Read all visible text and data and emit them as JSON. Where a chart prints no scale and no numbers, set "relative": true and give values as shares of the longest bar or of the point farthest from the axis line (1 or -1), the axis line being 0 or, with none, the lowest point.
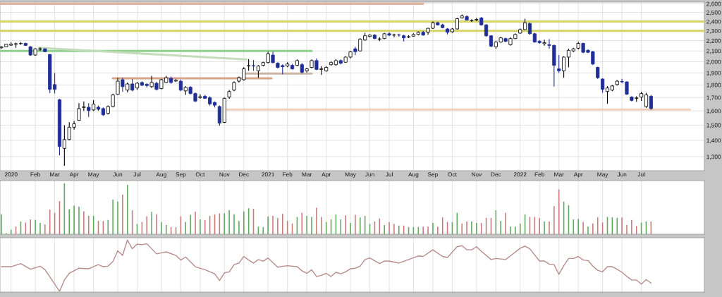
{
  "chart_data": [
    {
      "type": "candlestick",
      "log": "y",
      "grid": true,
      "color": "#000000",
      "x": [
        "2019-12-20",
        "2019-12-27",
        "2020-01-03",
        "2020-01-10",
        "2020-01-17",
        "2020-01-24",
        "2020-01-31",
        "2020-02-07",
        "2020-02-14",
        "2020-02-21",
        "2020-02-28",
        "2020-03-06",
        "2020-03-13",
        "2020-03-20",
        "2020-03-27",
        "2020-04-03",
        "2020-04-10",
        "2020-04-17",
        "2020-04-24",
        "2020-05-01",
        "2020-05-08",
        "2020-05-15",
        "2020-05-22",
        "2020-05-29",
        "2020-06-05",
        "2020-06-12",
        "2020-06-19",
        "2020-06-26",
        "2020-07-03",
        "2020-07-10",
        "2020-07-17",
        "2020-07-24",
        "2020-07-31",
        "2020-08-07",
        "2020-08-14",
        "2020-08-21",
        "2020-08-28",
        "2020-09-04",
        "2020-09-11",
        "2020-09-18",
        "2020-09-25",
        "2020-10-02",
        "2020-10-09",
        "2020-10-16",
        "2020-10-23",
        "2020-10-30",
        "2020-11-06",
        "2020-11-13",
        "2020-11-20",
        "2020-11-27",
        "2020-12-04",
        "2020-12-11",
        "2020-12-18",
        "2020-12-25",
        "2021-01-01",
        "2021-01-08",
        "2021-01-15",
        "2021-01-22",
        "2021-01-29",
        "2021-02-05",
        "2021-02-12",
        "2021-02-19",
        "2021-02-26",
        "2021-03-05",
        "2021-03-12",
        "2021-03-19",
        "2021-03-26",
        "2021-04-02",
        "2021-04-09",
        "2021-04-16",
        "2021-04-23",
        "2021-04-30",
        "2021-05-07",
        "2021-05-14",
        "2021-05-21",
        "2021-05-28",
        "2021-06-04",
        "2021-06-11",
        "2021-06-18",
        "2021-06-25",
        "2021-07-02",
        "2021-07-09",
        "2021-07-16",
        "2021-07-23",
        "2021-07-30",
        "2021-08-06",
        "2021-08-13",
        "2021-08-20",
        "2021-08-27",
        "2021-09-03",
        "2021-09-10",
        "2021-09-17",
        "2021-09-24",
        "2021-10-01",
        "2021-10-08",
        "2021-10-15",
        "2021-10-22",
        "2021-10-29",
        "2021-11-05",
        "2021-11-12",
        "2021-11-19",
        "2021-11-26",
        "2021-12-03",
        "2021-12-10",
        "2021-12-17",
        "2021-12-24",
        "2021-12-31",
        "2022-01-07",
        "2022-01-14",
        "2022-01-21",
        "2022-01-28",
        "2022-02-04",
        "2022-02-11",
        "2022-02-18",
        "2022-02-25",
        "2022-03-04",
        "2022-03-11",
        "2022-03-18",
        "2022-03-25",
        "2022-04-01",
        "2022-04-08",
        "2022-04-15",
        "2022-04-22",
        "2022-04-29",
        "2022-05-06",
        "2022-05-13",
        "2022-05-20",
        "2022-05-27",
        "2022-06-03",
        "2022-06-10",
        "2022-06-17",
        "2022-06-24",
        "2022-07-01",
        "2022-07-08",
        "2022-07-15"
      ],
      "ohlc": [
        [
          2130,
          2145,
          2120,
          2140
        ],
        [
          2140,
          2170,
          2135,
          2165
        ],
        [
          2155,
          2185,
          2150,
          2165
        ],
        [
          2165,
          2180,
          2130,
          2170
        ],
        [
          2170,
          2185,
          2160,
          2172
        ],
        [
          2173,
          2180,
          2150,
          2153
        ],
        [
          2140,
          2145,
          2055,
          2061
        ],
        [
          2061,
          2125,
          2055,
          2120
        ],
        [
          2115,
          2135,
          2100,
          2120
        ],
        [
          2120,
          2125,
          2090,
          2093
        ],
        [
          2067,
          2070,
          1735,
          1764
        ],
        [
          1803,
          1900,
          1731,
          1764
        ],
        [
          1683,
          1690,
          1308,
          1362
        ],
        [
          1350,
          1500,
          1248,
          1405
        ],
        [
          1405,
          1520,
          1400,
          1486
        ],
        [
          1486,
          1530,
          1470,
          1509
        ],
        [
          1533,
          1657,
          1530,
          1617
        ],
        [
          1625,
          1670,
          1600,
          1630
        ],
        [
          1627,
          1657,
          1557,
          1602
        ],
        [
          1607,
          1680,
          1600,
          1650
        ],
        [
          1627,
          1640,
          1600,
          1612
        ],
        [
          1617,
          1625,
          1565,
          1572
        ],
        [
          1582,
          1640,
          1575,
          1632
        ],
        [
          1632,
          1730,
          1625,
          1720
        ],
        [
          1725,
          1860,
          1720,
          1831
        ],
        [
          1843,
          1860,
          1747,
          1786
        ],
        [
          1758,
          1820,
          1740,
          1808
        ],
        [
          1808,
          1849,
          1750,
          1758
        ],
        [
          1775,
          1825,
          1760,
          1814
        ],
        [
          1820,
          1830,
          1790,
          1797
        ],
        [
          1805,
          1815,
          1780,
          1795
        ],
        [
          1786,
          1875,
          1775,
          1820
        ],
        [
          1814,
          1825,
          1755,
          1764
        ],
        [
          1770,
          1850,
          1765,
          1843
        ],
        [
          1820,
          1875,
          1815,
          1860
        ],
        [
          1854,
          1870,
          1810,
          1820
        ],
        [
          1832,
          1850,
          1825,
          1838
        ],
        [
          1831,
          1845,
          1750,
          1758
        ],
        [
          1752,
          1790,
          1720,
          1780
        ],
        [
          1781,
          1790,
          1725,
          1731
        ],
        [
          1731,
          1740,
          1665,
          1673
        ],
        [
          1700,
          1725,
          1690,
          1706
        ],
        [
          1710,
          1720,
          1690,
          1694
        ],
        [
          1699,
          1710,
          1640,
          1652
        ],
        [
          1663,
          1670,
          1625,
          1642
        ],
        [
          1632,
          1640,
          1496,
          1514
        ],
        [
          1519,
          1700,
          1515,
          1694
        ],
        [
          1704,
          1760,
          1690,
          1747
        ],
        [
          1758,
          1830,
          1750,
          1820
        ],
        [
          1831,
          1870,
          1820,
          1860
        ],
        [
          1843,
          1950,
          1835,
          1936
        ],
        [
          1961,
          2023,
          1919,
          1965
        ],
        [
          1965,
          2015,
          1919,
          1961
        ],
        [
          1919,
          1970,
          1860,
          1961
        ],
        [
          1967,
          2000,
          1960,
          1992
        ],
        [
          1992,
          2093,
          1985,
          2074
        ],
        [
          2061,
          2093,
          1985,
          1992
        ],
        [
          1986,
          1995,
          1940,
          1949
        ],
        [
          1965,
          1975,
          1889,
          1955
        ],
        [
          1961,
          1995,
          1950,
          1979
        ],
        [
          1967,
          1980,
          1930,
          1936
        ],
        [
          1967,
          2020,
          1960,
          2010
        ],
        [
          1973,
          1990,
          1895,
          1907
        ],
        [
          1919,
          1945,
          1905,
          1936
        ],
        [
          1949,
          2020,
          1940,
          2010
        ],
        [
          2010,
          2030,
          1925,
          1931
        ],
        [
          1931,
          1960,
          1883,
          1936
        ],
        [
          1919,
          1960,
          1910,
          1949
        ],
        [
          1973,
          2005,
          1965,
          1992
        ],
        [
          1973,
          2023,
          1965,
          2010
        ],
        [
          2010,
          2020,
          1975,
          1986
        ],
        [
          1995,
          2050,
          1990,
          2042
        ],
        [
          2042,
          2100,
          2030,
          2093
        ],
        [
          2120,
          2140,
          2060,
          2093
        ],
        [
          2100,
          2225,
          2095,
          2214
        ],
        [
          2207,
          2280,
          2200,
          2249
        ],
        [
          2242,
          2265,
          2235,
          2256
        ],
        [
          2256,
          2265,
          2215,
          2221
        ],
        [
          2214,
          2235,
          2195,
          2218
        ],
        [
          2221,
          2280,
          2215,
          2270
        ],
        [
          2270,
          2285,
          2245,
          2256
        ],
        [
          2256,
          2270,
          2235,
          2258
        ],
        [
          2258,
          2270,
          2240,
          2256
        ],
        [
          2249,
          2260,
          2193,
          2228
        ],
        [
          2235,
          2255,
          2225,
          2240
        ],
        [
          2245,
          2275,
          2240,
          2263
        ],
        [
          2263,
          2295,
          2255,
          2285
        ],
        [
          2285,
          2300,
          2250,
          2256
        ],
        [
          2285,
          2330,
          2260,
          2327
        ],
        [
          2327,
          2400,
          2320,
          2386
        ],
        [
          2386,
          2395,
          2355,
          2363
        ],
        [
          2363,
          2375,
          2325,
          2334
        ],
        [
          2320,
          2330,
          2263,
          2285
        ],
        [
          2290,
          2330,
          2280,
          2320
        ],
        [
          2320,
          2440,
          2315,
          2430
        ],
        [
          2440,
          2477,
          2430,
          2461
        ],
        [
          2454,
          2470,
          2410,
          2416
        ],
        [
          2408,
          2425,
          2395,
          2410
        ],
        [
          2415,
          2440,
          2405,
          2423
        ],
        [
          2438,
          2450,
          2355,
          2363
        ],
        [
          2363,
          2370,
          2240,
          2249
        ],
        [
          2249,
          2255,
          2135,
          2146
        ],
        [
          2140,
          2200,
          2120,
          2186
        ],
        [
          2186,
          2240,
          2180,
          2228
        ],
        [
          2221,
          2230,
          2185,
          2193
        ],
        [
          2160,
          2235,
          2150,
          2221
        ],
        [
          2221,
          2275,
          2215,
          2263
        ],
        [
          2277,
          2325,
          2270,
          2313
        ],
        [
          2313,
          2430,
          2305,
          2386
        ],
        [
          2378,
          2390,
          2260,
          2270
        ],
        [
          2270,
          2280,
          2180,
          2186
        ],
        [
          2193,
          2205,
          2170,
          2180
        ],
        [
          2170,
          2210,
          2150,
          2180
        ],
        [
          2160,
          2215,
          2120,
          2153
        ],
        [
          2153,
          2160,
          1786,
          1967
        ],
        [
          1936,
          2061,
          1900,
          1919
        ],
        [
          1919,
          2050,
          1860,
          2042
        ],
        [
          2042,
          2120,
          1950,
          2106
        ],
        [
          2100,
          2130,
          2090,
          2120
        ],
        [
          2126,
          2190,
          2115,
          2173
        ],
        [
          2173,
          2180,
          2080,
          2087
        ],
        [
          2106,
          2115,
          2080,
          2087
        ],
        [
          2093,
          2100,
          1970,
          1979
        ],
        [
          1949,
          1955,
          1850,
          1860
        ],
        [
          1849,
          1855,
          1737,
          1764
        ],
        [
          1747,
          1790,
          1652,
          1775
        ],
        [
          1758,
          1800,
          1750,
          1792
        ],
        [
          1803,
          1840,
          1795,
          1831
        ],
        [
          1828,
          1850,
          1815,
          1825
        ],
        [
          1825,
          1830,
          1720,
          1726
        ],
        [
          1704,
          1710,
          1670,
          1678
        ],
        [
          1694,
          1710,
          1668,
          1697
        ],
        [
          1704,
          1745,
          1675,
          1731
        ],
        [
          1632,
          1737,
          1622,
          1720
        ],
        [
          1710,
          1720,
          1607,
          1617
        ]
      ],
      "colors": [
        "#ffffff",
        "#ffffff",
        "#ffffff",
        "#ffffff",
        "#ffffff",
        "#1f2e96",
        "#1f2e96",
        "#ffffff",
        "#ffffff",
        "#1f2e96",
        "#1f2e96",
        "#1f2e96",
        "#1f2e96",
        "#ffffff",
        "#ffffff",
        "#ffffff",
        "#ffffff",
        "#ffffff",
        "#1f2e96",
        "#ffffff",
        "#1f2e96",
        "#1f2e96",
        "#ffffff",
        "#ffffff",
        "#ffffff",
        "#1f2e96",
        "#ffffff",
        "#1f2e96",
        "#ffffff",
        "#1f2e96",
        "#1f2e96",
        "#ffffff",
        "#1f2e96",
        "#ffffff",
        "#ffffff",
        "#1f2e96",
        "#ffffff",
        "#1f2e96",
        "#ffffff",
        "#1f2e96",
        "#1f2e96",
        "#ffffff",
        "#1f2e96",
        "#1f2e96",
        "#1f2e96",
        "#1f2e96",
        "#ffffff",
        "#ffffff",
        "#ffffff",
        "#ffffff",
        "#ffffff",
        "#ffffff",
        "#1f2e96",
        "#ffffff",
        "#ffffff",
        "#ffffff",
        "#1f2e96",
        "#1f2e96",
        "#1f2e96",
        "#ffffff",
        "#1f2e96",
        "#ffffff",
        "#1f2e96",
        "#ffffff",
        "#ffffff",
        "#1f2e96",
        "#ffffff",
        "#ffffff",
        "#ffffff",
        "#ffffff",
        "#1f2e96",
        "#ffffff",
        "#ffffff",
        "#1f2e96",
        "#ffffff",
        "#ffffff",
        "#ffffff",
        "#1f2e96",
        "#ffffff",
        "#ffffff",
        "#1f2e96",
        "#ffffff",
        "#1f2e96",
        "#1f2e96",
        "#ffffff",
        "#ffffff",
        "#ffffff",
        "#1f2e96",
        "#ffffff",
        "#ffffff",
        "#1f2e96",
        "#1f2e96",
        "#1f2e96",
        "#ffffff",
        "#ffffff",
        "#ffffff",
        "#1f2e96",
        "#ffffff",
        "#ffffff",
        "#1f2e96",
        "#1f2e96",
        "#1f2e96",
        "#ffffff",
        "#ffffff",
        "#1f2e96",
        "#ffffff",
        "#ffffff",
        "#ffffff",
        "#ffffff",
        "#1f2e96",
        "#1f2e96",
        "#1f2e96",
        "#ffffff",
        "#1f2e96",
        "#1f2e96",
        "#1f2e96",
        "#ffffff",
        "#ffffff",
        "#ffffff",
        "#ffffff",
        "#1f2e96",
        "#1f2e96",
        "#1f2e96",
        "#1f2e96",
        "#1f2e96",
        "#ffffff",
        "#ffffff",
        "#ffffff",
        "#1f2e96",
        "#1f2e96",
        "#1f2e96",
        "#ffffff",
        "#ffffff",
        "#ffffff",
        "#1f2e96"
      ],
      "series": [
        {
          "type": "line",
          "color": "#e2b3a0",
          "x": [
            "2019-12-18",
            "2021-08-20"
          ],
          "values": [
            2600,
            2600
          ]
        },
        {
          "type": "line",
          "color": "#d4d46a",
          "x": [
            "2019-12-18",
            "2022-09-30"
          ],
          "values": [
            2400,
            2400
          ]
        },
        {
          "type": "line",
          "color": "#d4d46a",
          "x": [
            "2019-12-18",
            "2022-09-30"
          ],
          "values": [
            2300,
            2300
          ]
        },
        {
          "type": "line",
          "color": "#8fd08f",
          "x": [
            "2019-12-18",
            "2021-03-12"
          ],
          "values": [
            2100,
            2100
          ]
        },
        {
          "type": "line",
          "color": "#c4dcbc",
          "x": [
            "2020-02-12",
            "2020-12-08"
          ],
          "values": [
            2130,
            2020
          ]
        },
        {
          "type": "line",
          "color": "#d9a58a",
          "x": [
            "2020-05-29",
            "2021-01-13"
          ],
          "values": [
            1855,
            1855
          ]
        },
        {
          "type": "line",
          "color": "#cbb5a5",
          "x": [
            "2020-12-05",
            "2021-03-12"
          ],
          "values": [
            1895,
            1895
          ]
        },
        {
          "type": "line",
          "color": "#f0d0bc",
          "x": [
            "2020-11-06",
            "2022-09-09"
          ],
          "values": [
            1610,
            1610
          ]
        }
      ],
      "xlim": [
        "2019-12-18",
        "2022-09-30"
      ],
      "ylim": [
        1220,
        2620
      ],
      "yticks": [
        {
          "value": 1300,
          "label": "1,300"
        },
        {
          "value": 1400,
          "label": "1,400"
        },
        {
          "value": 1500,
          "label": "1,500"
        },
        {
          "value": 1600,
          "label": "1,600"
        },
        {
          "value": 1700,
          "label": "1,700"
        },
        {
          "value": 1800,
          "label": "1,800"
        },
        {
          "value": 1900,
          "label": "1,900"
        },
        {
          "value": 2000,
          "label": "2,000"
        },
        {
          "value": 2100,
          "label": "2,100"
        },
        {
          "value": 2200,
          "label": "2,200"
        },
        {
          "value": 2300,
          "label": "2,300"
        },
        {
          "value": 2400,
          "label": "2,400"
        },
        {
          "value": 2500,
          "label": "2,500"
        },
        {
          "value": 2600,
          "label": "2,600"
        }
      ],
      "xticks": [
        {
          "value": "2020-01-03",
          "label": "2020"
        },
        {
          "value": "2020-02-07",
          "label": "Feb"
        },
        {
          "value": "2020-03-06",
          "label": "Mar"
        },
        {
          "value": "2020-04-03",
          "label": "Apr"
        },
        {
          "value": "2020-05-01",
          "label": "May"
        },
        {
          "value": "2020-06-05",
          "label": "Jun"
        },
        {
          "value": "2020-07-03",
          "label": "Jul"
        },
        {
          "value": "2020-08-07",
          "label": "Aug"
        },
        {
          "value": "2020-09-04",
          "label": "Sep"
        },
        {
          "value": "2020-10-02",
          "label": "Oct"
        },
        {
          "value": "2020-11-06",
          "label": "Nov"
        },
        {
          "value": "2020-12-04",
          "label": "Dec"
        },
        {
          "value": "2021-01-08",
          "label": "2021"
        },
        {
          "value": "2021-02-05",
          "label": "Feb"
        },
        {
          "value": "2021-03-05",
          "label": "Mar"
        },
        {
          "value": "2021-04-02",
          "label": "Apr"
        },
        {
          "value": "2021-05-07",
          "label": "May"
        },
        {
          "value": "2021-06-04",
          "label": "Jun"
        },
        {
          "value": "2021-07-02",
          "label": "Jul"
        },
        {
          "value": "2021-08-06",
          "label": "Aug"
        },
        {
          "value": "2021-09-03",
          "label": "Sep"
        },
        {
          "value": "2021-10-01",
          "label": "Oct"
        },
        {
          "value": "2021-11-05",
          "label": "Nov"
        },
        {
          "value": "2021-12-03",
          "label": "Dec"
        },
        {
          "value": "2022-01-07",
          "label": "2022"
        },
        {
          "value": "2022-02-04",
          "label": "Feb"
        },
        {
          "value": "2022-03-04",
          "label": "Mar"
        },
        {
          "value": "2022-04-01",
          "label": "Apr"
        },
        {
          "value": "2022-05-06",
          "label": "May"
        },
        {
          "value": "2022-06-03",
          "label": "Jun"
        },
        {
          "value": "2022-07-01",
          "label": "Jul"
        }
      ]
    },
    {
      "type": "bar",
      "relative": true,
      "grid": "x",
      "tick_labels": false,
      "x": [
        "2019-12-20",
        "2019-12-27",
        "2020-01-03",
        "2020-01-10",
        "2020-01-17",
        "2020-01-24",
        "2020-01-31",
        "2020-02-07",
        "2020-02-14",
        "2020-02-21",
        "2020-02-28",
        "2020-03-06",
        "2020-03-13",
        "2020-03-20",
        "2020-03-27",
        "2020-04-03",
        "2020-04-10",
        "2020-04-17",
        "2020-04-24",
        "2020-05-01",
        "2020-05-08",
        "2020-05-15",
        "2020-05-22",
        "2020-05-29",
        "2020-06-05",
        "2020-06-12",
        "2020-06-19",
        "2020-06-26",
        "2020-07-03",
        "2020-07-10",
        "2020-07-17",
        "2020-07-24",
        "2020-07-31",
        "2020-08-07",
        "2020-08-14",
        "2020-08-21",
        "2020-08-28",
        "2020-09-04",
        "2020-09-11",
        "2020-09-18",
        "2020-09-25",
        "2020-10-02",
        "2020-10-09",
        "2020-10-16",
        "2020-10-23",
        "2020-10-30",
        "2020-11-06",
        "2020-11-13",
        "2020-11-20",
        "2020-11-27",
        "2020-12-04",
        "2020-12-11",
        "2020-12-18",
        "2020-12-25",
        "2021-01-01",
        "2021-01-08",
        "2021-01-15",
        "2021-01-22",
        "2021-01-29",
        "2021-02-05",
        "2021-02-12",
        "2021-02-19",
        "2021-02-26",
        "2021-03-05",
        "2021-03-12",
        "2021-03-19",
        "2021-03-26",
        "2021-04-02",
        "2021-04-09",
        "2021-04-16",
        "2021-04-23",
        "2021-04-30",
        "2021-05-07",
        "2021-05-14",
        "2021-05-21",
        "2021-05-28",
        "2021-06-04",
        "2021-06-11",
        "2021-06-18",
        "2021-06-25",
        "2021-07-02",
        "2021-07-09",
        "2021-07-16",
        "2021-07-23",
        "2021-07-30",
        "2021-08-06",
        "2021-08-13",
        "2021-08-20",
        "2021-08-27",
        "2021-09-03",
        "2021-09-10",
        "2021-09-17",
        "2021-09-24",
        "2021-10-01",
        "2021-10-08",
        "2021-10-15",
        "2021-10-22",
        "2021-10-29",
        "2021-11-05",
        "2021-11-12",
        "2021-11-19",
        "2021-11-26",
        "2021-12-03",
        "2021-12-10",
        "2021-12-17",
        "2021-12-24",
        "2021-12-31",
        "2022-01-07",
        "2022-01-14",
        "2022-01-21",
        "2022-01-28",
        "2022-02-04",
        "2022-02-11",
        "2022-02-18",
        "2022-02-25",
        "2022-03-04",
        "2022-03-11",
        "2022-03-18",
        "2022-03-25",
        "2022-04-01",
        "2022-04-08",
        "2022-04-15",
        "2022-04-22",
        "2022-04-29",
        "2022-05-06",
        "2022-05-13",
        "2022-05-20",
        "2022-05-27",
        "2022-06-03",
        "2022-06-10",
        "2022-06-17",
        "2022-06-24",
        "2022-07-01",
        "2022-07-08",
        "2022-07-15"
      ],
      "values": [
        0.39,
        0.02,
        0.09,
        0.15,
        0.25,
        0.23,
        0.29,
        0.28,
        0.22,
        0.19,
        0.48,
        0.42,
        0.65,
        1,
        0.49,
        0.56,
        0.54,
        0.45,
        0.36,
        0.36,
        0.26,
        0.26,
        0.28,
        0.68,
        0.64,
        0.78,
        0.97,
        0.47,
        0.2,
        0.24,
        0.35,
        0.44,
        0.39,
        0.24,
        0.18,
        0.14,
        0.14,
        0.35,
        0.24,
        0.38,
        0.44,
        0.29,
        0.28,
        0.36,
        0.39,
        0.41,
        0.41,
        0.47,
        0.39,
        0.26,
        0.45,
        0.51,
        0.5,
        0.15,
        0.14,
        0.35,
        0.36,
        0.32,
        0.4,
        0.26,
        0.21,
        0.34,
        0.42,
        0.36,
        0.34,
        0.52,
        0.34,
        0.24,
        0.29,
        0.39,
        0.29,
        0.37,
        0.22,
        0.38,
        0.33,
        0.36,
        0.2,
        0.25,
        0.31,
        0.18,
        0.24,
        0.2,
        0.17,
        0.17,
        0.14,
        0.14,
        0.14,
        0.15,
        0.15,
        0.22,
        0.15,
        0.33,
        0.24,
        0.24,
        0.42,
        0.21,
        0.25,
        0.25,
        0.22,
        0.22,
        0.32,
        0.32,
        0.47,
        0.26,
        0.42,
        0.15,
        0.15,
        0.21,
        0.39,
        0.34,
        0.34,
        0.32,
        0.25,
        0.25,
        0.55,
        0.88,
        0.64,
        0.57,
        0.29,
        0.3,
        0.24,
        0.15,
        0.21,
        0.33,
        0.23,
        0.34,
        0.33,
        0.32,
        0.33,
        0.18,
        0.28,
        0.16,
        0.23,
        0.25,
        0.25
      ],
      "colors": [
        "#5fa85f",
        "#5fa85f",
        "#5fa85f",
        "#c97a7a",
        "#5fa85f",
        "#c97a7a",
        "#c97a7a",
        "#5fa85f",
        "#5fa85f",
        "#c97a7a",
        "#c97a7a",
        "#c97a7a",
        "#c97a7a",
        "#5fa85f",
        "#5fa85f",
        "#5fa85f",
        "#5fa85f",
        "#c97a7a",
        "#c97a7a",
        "#5fa85f",
        "#c97a7a",
        "#c97a7a",
        "#5fa85f",
        "#5fa85f",
        "#5fa85f",
        "#c97a7a",
        "#5fa85f",
        "#c97a7a",
        "#5fa85f",
        "#c97a7a",
        "#c97a7a",
        "#5fa85f",
        "#c97a7a",
        "#5fa85f",
        "#5fa85f",
        "#c97a7a",
        "#c97a7a",
        "#c97a7a",
        "#5fa85f",
        "#5fa85f",
        "#c97a7a",
        "#5fa85f",
        "#c97a7a",
        "#c97a7a",
        "#c97a7a",
        "#c97a7a",
        "#5fa85f",
        "#5fa85f",
        "#5fa85f",
        "#5fa85f",
        "#5fa85f",
        "#5fa85f",
        "#c97a7a",
        "#5fa85f",
        "#5fa85f",
        "#5fa85f",
        "#c97a7a",
        "#c97a7a",
        "#c97a7a",
        "#c97a7a",
        "#c97a7a",
        "#5fa85f",
        "#c97a7a",
        "#5fa85f",
        "#5fa85f",
        "#c97a7a",
        "#c97a7a",
        "#5fa85f",
        "#5fa85f",
        "#5fa85f",
        "#5fa85f",
        "#c97a7a",
        "#5fa85f",
        "#c97a7a",
        "#5fa85f",
        "#5fa85f",
        "#5fa85f",
        "#c97a7a",
        "#c97a7a",
        "#5fa85f",
        "#c97a7a",
        "#c97a7a",
        "#5fa85f",
        "#c97a7a",
        "#5fa85f",
        "#5fa85f",
        "#5fa85f",
        "#c97a7a",
        "#c97a7a",
        "#5fa85f",
        "#c97a7a",
        "#c97a7a",
        "#c97a7a",
        "#5fa85f",
        "#5fa85f",
        "#c97a7a",
        "#c97a7a",
        "#5fa85f",
        "#5fa85f",
        "#c97a7a",
        "#c97a7a",
        "#c97a7a",
        "#5fa85f",
        "#5fa85f",
        "#c97a7a",
        "#5fa85f",
        "#5fa85f",
        "#5fa85f",
        "#5fa85f",
        "#c97a7a",
        "#c97a7a",
        "#c97a7a",
        "#5fa85f",
        "#c97a7a",
        "#c97a7a",
        "#c97a7a",
        "#5fa85f",
        "#5fa85f",
        "#5fa85f",
        "#5fa85f",
        "#c97a7a",
        "#5fa85f",
        "#c97a7a",
        "#c97a7a",
        "#c97a7a",
        "#5fa85f",
        "#5fa85f",
        "#5fa85f",
        "#c97a7a",
        "#c97a7a",
        "#c97a7a",
        "#c97a7a",
        "#5fa85f",
        "#5fa85f",
        "#c97a7a"
      ],
      "xlim": [
        "2019-12-18",
        "2022-09-30"
      ],
      "xticks": [
        "2020-01-03",
        "2020-02-07",
        "2020-03-06",
        "2020-04-03",
        "2020-05-01",
        "2020-06-05",
        "2020-07-03",
        "2020-08-07",
        "2020-09-04",
        "2020-10-02",
        "2020-11-06",
        "2020-12-04",
        "2021-01-08",
        "2021-02-05",
        "2021-03-05",
        "2021-04-02",
        "2021-05-07",
        "2021-06-04",
        "2021-07-02",
        "2021-08-06",
        "2021-09-03",
        "2021-10-01",
        "2021-11-05",
        "2021-12-03",
        "2022-01-07",
        "2022-02-04",
        "2022-03-04",
        "2022-04-01",
        "2022-05-06",
        "2022-06-03",
        "2022-07-01"
      ]
    },
    {
      "type": "line",
      "relative": true,
      "grid": "x",
      "tick_labels": false,
      "series": [
        {
          "color": "#b98c8c",
          "x": [
            "2019-12-20",
            "2020-01-03",
            "2020-01-17",
            "2020-01-31",
            "2020-02-14",
            "2020-02-21",
            "2020-03-13",
            "2020-03-20",
            "2020-03-27",
            "2020-04-10",
            "2020-04-24",
            "2020-05-08",
            "2020-05-15",
            "2020-05-22",
            "2020-05-29",
            "2020-06-05",
            "2020-06-12",
            "2020-06-19",
            "2020-06-26",
            "2020-07-03",
            "2020-07-10",
            "2020-07-17",
            "2020-07-31",
            "2020-08-14",
            "2020-08-28",
            "2020-09-04",
            "2020-09-11",
            "2020-09-25",
            "2020-10-09",
            "2020-10-23",
            "2020-10-30",
            "2020-11-06",
            "2020-11-13",
            "2020-11-20",
            "2020-11-27",
            "2020-12-04",
            "2020-12-11",
            "2020-12-18",
            "2020-12-25",
            "2021-01-01",
            "2021-01-08",
            "2021-01-15",
            "2021-01-22",
            "2021-01-29",
            "2021-02-05",
            "2021-02-19",
            "2021-02-26",
            "2021-03-05",
            "2021-03-12",
            "2021-03-19",
            "2021-03-26",
            "2021-04-02",
            "2021-04-09",
            "2021-04-16",
            "2021-04-23",
            "2021-04-30",
            "2021-05-07",
            "2021-05-14",
            "2021-05-21",
            "2021-05-28",
            "2021-06-04",
            "2021-06-18",
            "2021-06-25",
            "2021-07-02",
            "2021-07-16",
            "2021-07-30",
            "2021-08-13",
            "2021-08-20",
            "2021-09-03",
            "2021-09-17",
            "2021-09-24",
            "2021-10-08",
            "2021-10-15",
            "2021-10-22",
            "2021-10-29",
            "2021-11-05",
            "2021-11-12",
            "2021-11-26",
            "2021-12-03",
            "2021-12-17",
            "2021-12-24",
            "2022-01-07",
            "2022-01-14",
            "2022-01-21",
            "2022-02-04",
            "2022-02-11",
            "2022-02-18",
            "2022-02-25",
            "2022-03-04",
            "2022-03-11",
            "2022-03-18",
            "2022-03-25",
            "2022-04-01",
            "2022-04-08",
            "2022-04-15",
            "2022-04-22",
            "2022-04-29",
            "2022-05-06",
            "2022-05-13",
            "2022-05-20",
            "2022-05-27",
            "2022-06-03",
            "2022-06-10",
            "2022-06-17",
            "2022-06-24",
            "2022-07-01",
            "2022-07-08",
            "2022-07-15"
          ],
          "values": [
            0.48,
            0.48,
            0.54,
            0.43,
            0.49,
            0.42,
            0,
            0.22,
            0.35,
            0.45,
            0.44,
            0.52,
            0.48,
            0.49,
            0.58,
            0.79,
            0.7,
            1,
            0.83,
            0.92,
            0.91,
            0.93,
            0.73,
            0.77,
            0.7,
            0.61,
            0.67,
            0.48,
            0.42,
            0.34,
            0.21,
            0.36,
            0.38,
            0.52,
            0.55,
            0.68,
            0.61,
            0.55,
            0.62,
            0.59,
            0.65,
            0.56,
            0.47,
            0.49,
            0.5,
            0.48,
            0.4,
            0.35,
            0.42,
            0.29,
            0.31,
            0.35,
            0.29,
            0.37,
            0.34,
            0.38,
            0.44,
            0.45,
            0.49,
            0.62,
            0.65,
            0.54,
            0.59,
            0.59,
            0.55,
            0.62,
            0.69,
            0.68,
            0.81,
            0.68,
            0.66,
            0.87,
            0.89,
            0.81,
            0.81,
            0.87,
            0.78,
            0.62,
            0.64,
            0.62,
            0.69,
            0.84,
            0.88,
            0.83,
            0.59,
            0.59,
            0.53,
            0.52,
            0.33,
            0.5,
            0.64,
            0.64,
            0.68,
            0.61,
            0.6,
            0.49,
            0.41,
            0.38,
            0.48,
            0.48,
            0.43,
            0.37,
            0.29,
            0.22,
            0.22,
            0.14,
            0.23,
            0.16
          ]
        }
      ],
      "xlim": [
        "2019-12-18",
        "2022-09-30"
      ],
      "xticks": [
        "2020-01-03",
        "2020-02-07",
        "2020-03-06",
        "2020-04-03",
        "2020-05-01",
        "2020-06-05",
        "2020-07-03",
        "2020-08-07",
        "2020-09-04",
        "2020-10-02",
        "2020-11-06",
        "2020-12-04",
        "2021-01-08",
        "2021-02-05",
        "2021-03-05",
        "2021-04-02",
        "2021-05-07",
        "2021-06-04",
        "2021-07-02",
        "2021-08-06",
        "2021-09-03",
        "2021-10-01",
        "2021-11-05",
        "2021-12-03",
        "2022-01-07",
        "2022-02-04",
        "2022-03-04",
        "2022-04-01",
        "2022-05-06",
        "2022-06-03",
        "2022-07-01"
      ]
    }
  ]
}
